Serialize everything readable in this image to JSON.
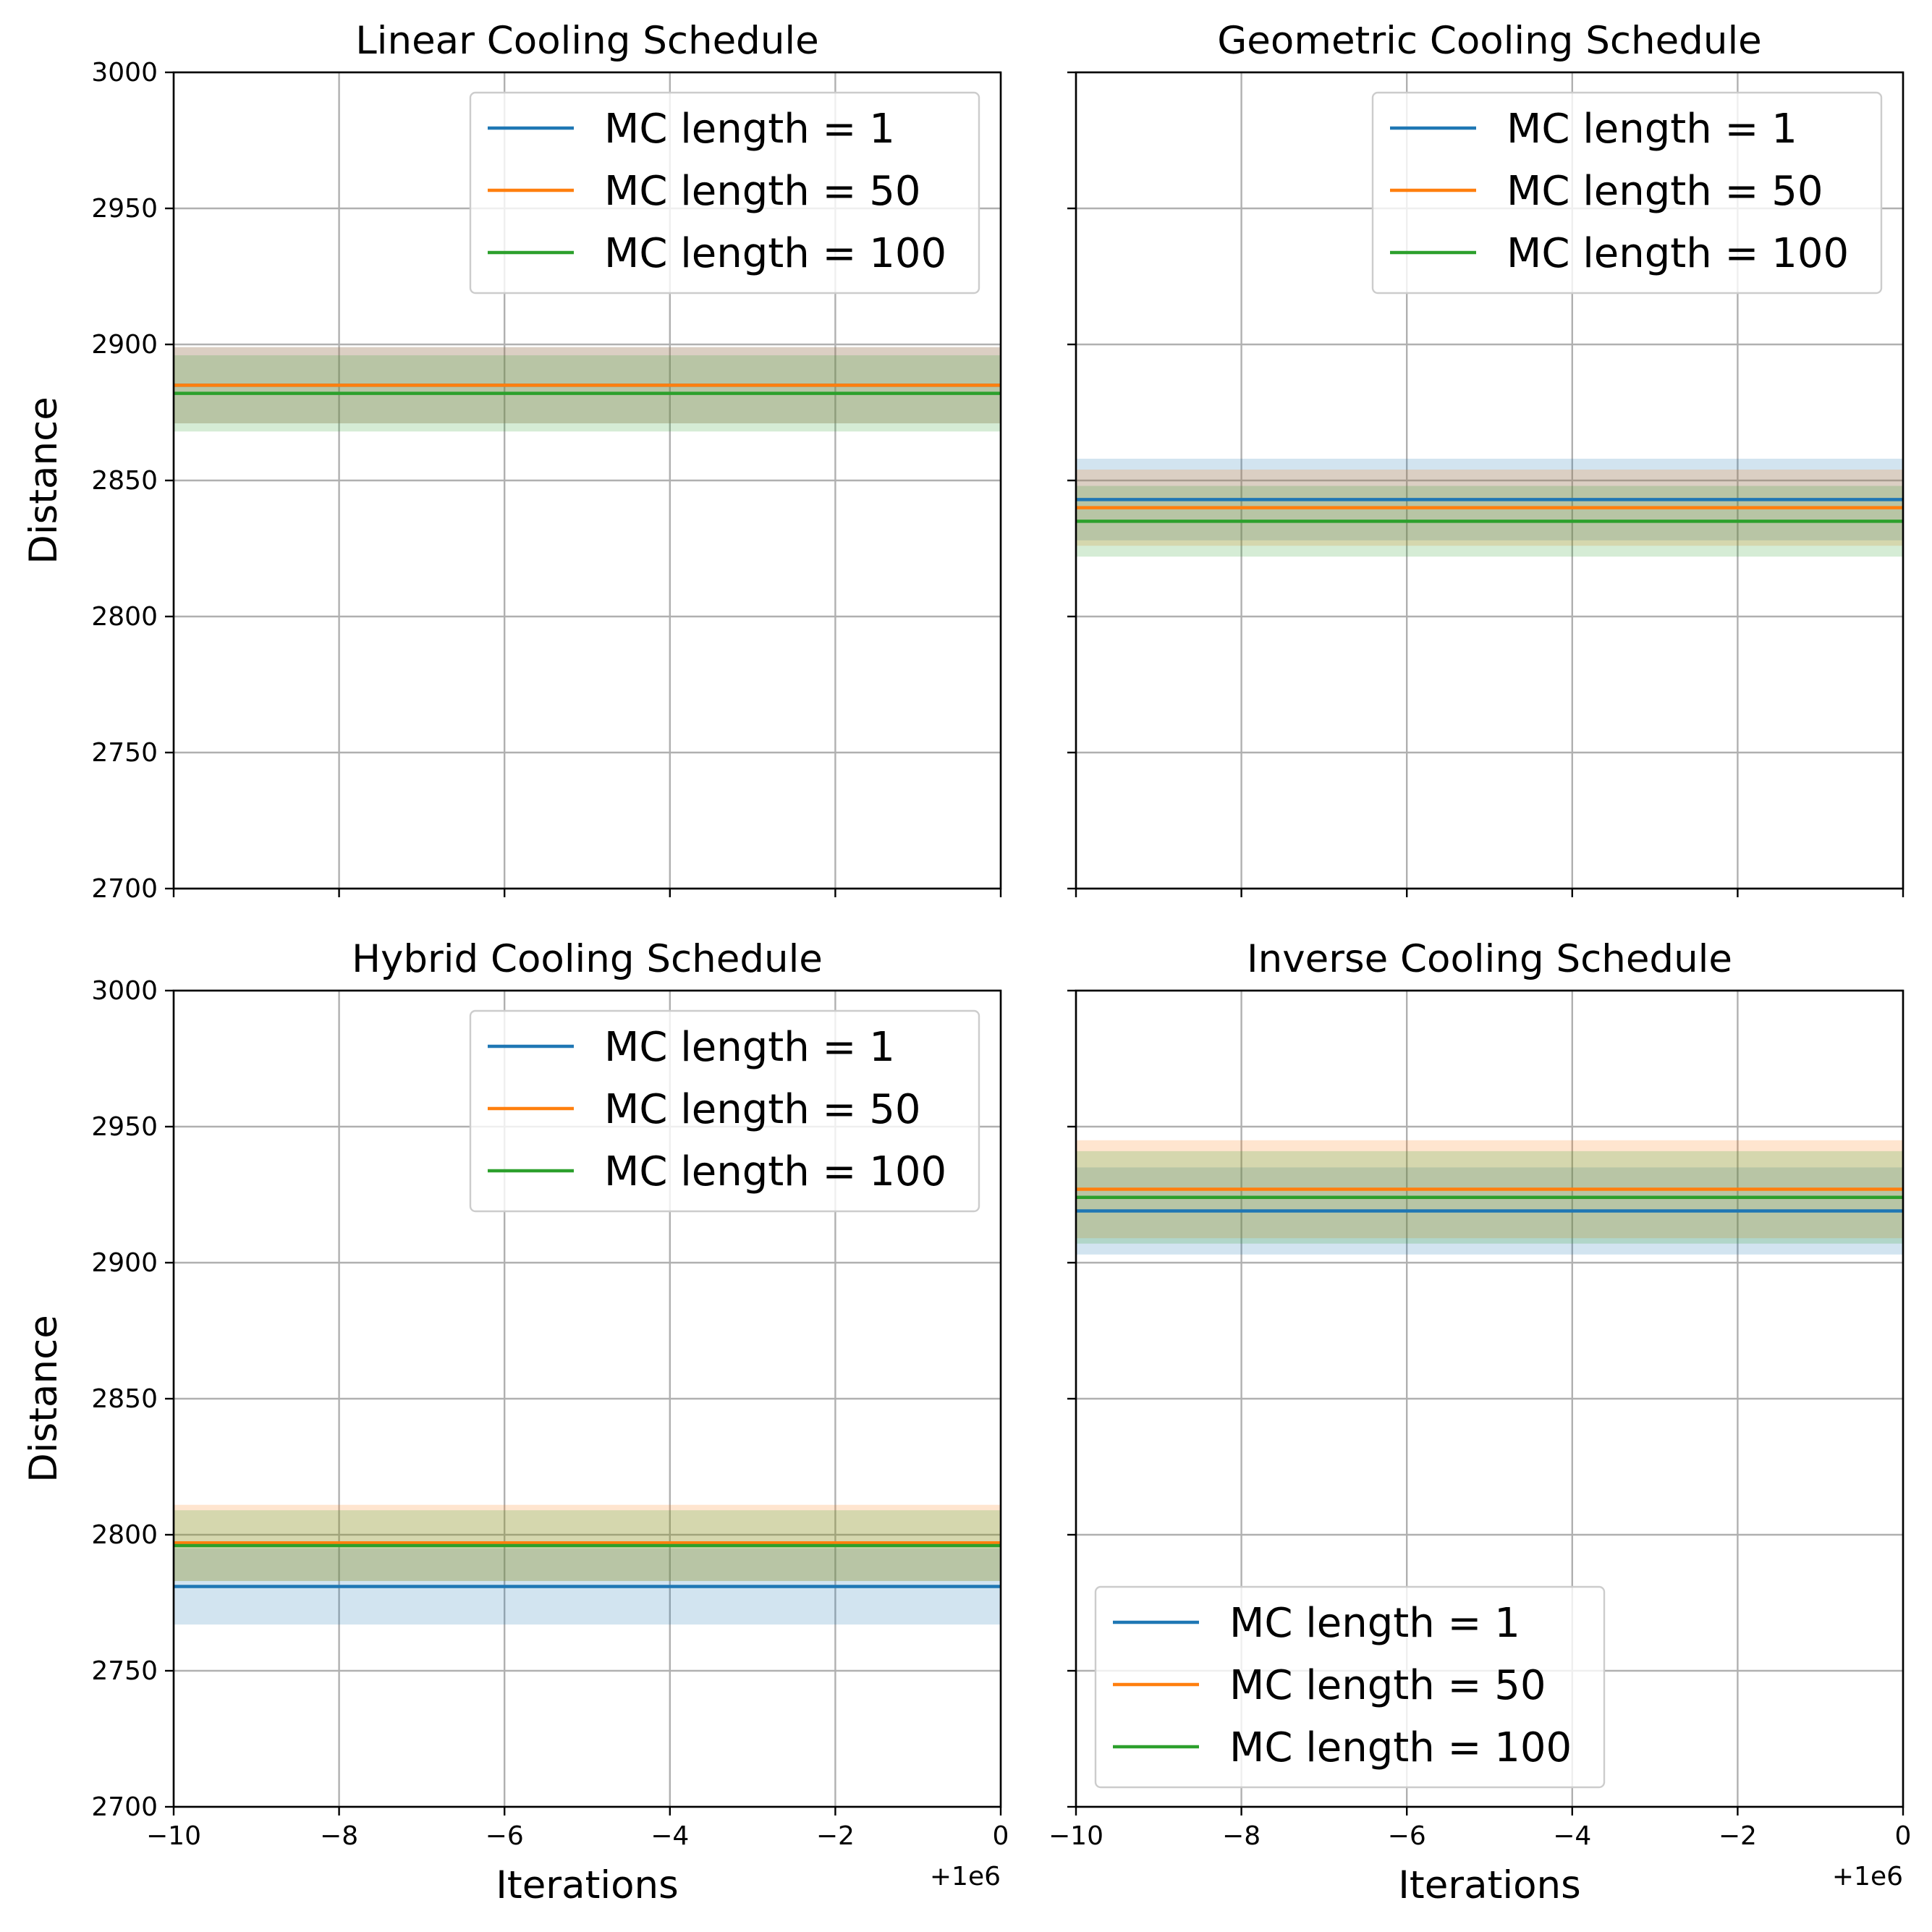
{
  "figure": {
    "y_label": "Distance",
    "x_label": "Iterations",
    "x_offset_label": "+1e6",
    "x_tick_labels": [
      "−10",
      "−8",
      "−6",
      "−4",
      "−2",
      "0"
    ],
    "y_tick_labels": [
      "2700",
      "2750",
      "2800",
      "2850",
      "2900",
      "2950",
      "3000"
    ]
  },
  "colors": {
    "mc1": "#1f77b4",
    "mc50": "#ff7f0e",
    "mc100": "#2ca02c",
    "grid": "#b0b0b0"
  },
  "chart_data": [
    {
      "type": "line",
      "title": "Linear Cooling Schedule",
      "xlabel": "",
      "ylabel": "Distance",
      "x_offset": 1000000,
      "xlim": [
        -10,
        0
      ],
      "ylim": [
        2700,
        3000
      ],
      "grid": true,
      "legend": "upper right",
      "series": [
        {
          "name": "MC length = 1",
          "color": "#1f77b4",
          "x": [
            -10,
            0
          ],
          "y": [
            2885,
            2885
          ],
          "band": [
            2871,
            2899
          ]
        },
        {
          "name": "MC length = 50",
          "color": "#ff7f0e",
          "x": [
            -10,
            0
          ],
          "y": [
            2885,
            2885
          ],
          "band": [
            2871,
            2899
          ]
        },
        {
          "name": "MC length = 100",
          "color": "#2ca02c",
          "x": [
            -10,
            0
          ],
          "y": [
            2882,
            2882
          ],
          "band": [
            2868,
            2896
          ]
        }
      ]
    },
    {
      "type": "line",
      "title": "Geometric Cooling Schedule",
      "xlabel": "",
      "ylabel": "",
      "x_offset": 1000000,
      "xlim": [
        -10,
        0
      ],
      "ylim": [
        2700,
        3000
      ],
      "grid": true,
      "legend": "upper right",
      "series": [
        {
          "name": "MC length = 1",
          "color": "#1f77b4",
          "x": [
            -10,
            0
          ],
          "y": [
            2843,
            2843
          ],
          "band": [
            2828,
            2858
          ]
        },
        {
          "name": "MC length = 50",
          "color": "#ff7f0e",
          "x": [
            -10,
            0
          ],
          "y": [
            2840,
            2840
          ],
          "band": [
            2826,
            2854
          ]
        },
        {
          "name": "MC length = 100",
          "color": "#2ca02c",
          "x": [
            -10,
            0
          ],
          "y": [
            2835,
            2835
          ],
          "band": [
            2822,
            2848
          ]
        }
      ]
    },
    {
      "type": "line",
      "title": "Hybrid Cooling Schedule",
      "xlabel": "Iterations",
      "ylabel": "Distance",
      "x_offset": 1000000,
      "xlim": [
        -10,
        0
      ],
      "ylim": [
        2700,
        3000
      ],
      "grid": true,
      "legend": "upper right",
      "series": [
        {
          "name": "MC length = 1",
          "color": "#1f77b4",
          "x": [
            -10,
            0
          ],
          "y": [
            2781,
            2781
          ],
          "band": [
            2767,
            2795
          ]
        },
        {
          "name": "MC length = 50",
          "color": "#ff7f0e",
          "x": [
            -10,
            0
          ],
          "y": [
            2797,
            2797
          ],
          "band": [
            2783,
            2811
          ]
        },
        {
          "name": "MC length = 100",
          "color": "#2ca02c",
          "x": [
            -10,
            0
          ],
          "y": [
            2796,
            2796
          ],
          "band": [
            2783,
            2809
          ]
        }
      ]
    },
    {
      "type": "line",
      "title": "Inverse Cooling Schedule",
      "xlabel": "Iterations",
      "ylabel": "",
      "x_offset": 1000000,
      "xlim": [
        -10,
        0
      ],
      "ylim": [
        2700,
        3000
      ],
      "grid": true,
      "legend": "lower left",
      "series": [
        {
          "name": "MC length = 1",
          "color": "#1f77b4",
          "x": [
            -10,
            0
          ],
          "y": [
            2919,
            2919
          ],
          "band": [
            2903,
            2935
          ]
        },
        {
          "name": "MC length = 50",
          "color": "#ff7f0e",
          "x": [
            -10,
            0
          ],
          "y": [
            2927,
            2927
          ],
          "band": [
            2909,
            2945
          ]
        },
        {
          "name": "MC length = 100",
          "color": "#2ca02c",
          "x": [
            -10,
            0
          ],
          "y": [
            2924,
            2924
          ],
          "band": [
            2907,
            2941
          ]
        }
      ]
    }
  ]
}
